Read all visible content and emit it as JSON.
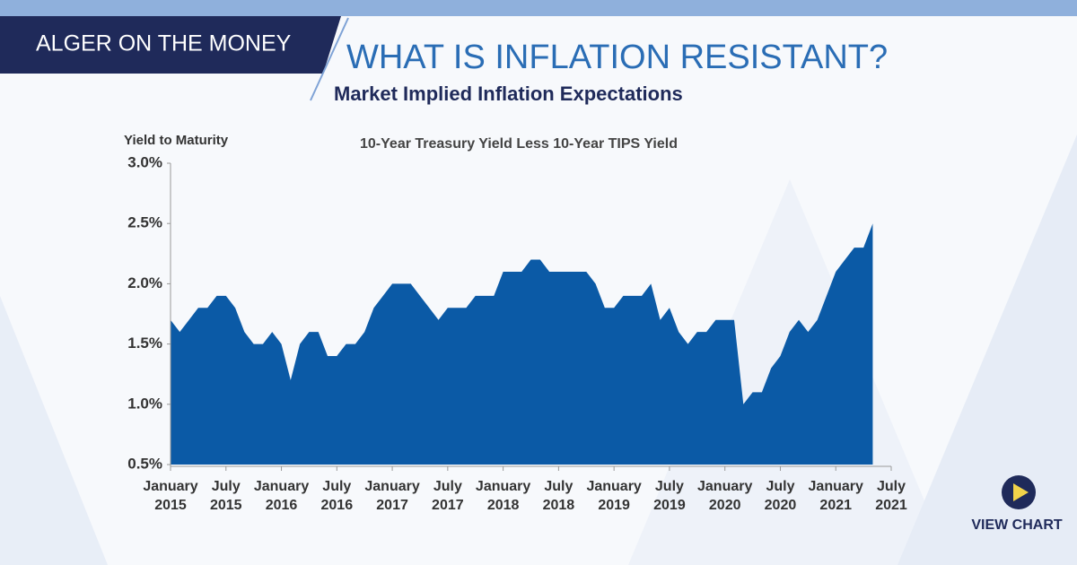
{
  "header": {
    "brand": "ALGER ON THE MONEY",
    "headline": "WHAT IS INFLATION RESISTANT?"
  },
  "button": {
    "label": "VIEW CHART"
  },
  "chart_data": {
    "type": "area",
    "title": "Market Implied Inflation Expectations",
    "subtitle": "10-Year Treasury Yield Less 10-Year TIPS Yield",
    "y_label": "Yield to Maturity",
    "color": "#0b5aa6",
    "x": [
      "2015-01",
      "2015-02",
      "2015-03",
      "2015-04",
      "2015-05",
      "2015-06",
      "2015-07",
      "2015-08",
      "2015-09",
      "2015-10",
      "2015-11",
      "2015-12",
      "2016-01",
      "2016-02",
      "2016-03",
      "2016-04",
      "2016-05",
      "2016-06",
      "2016-07",
      "2016-08",
      "2016-09",
      "2016-10",
      "2016-11",
      "2016-12",
      "2017-01",
      "2017-02",
      "2017-03",
      "2017-04",
      "2017-05",
      "2017-06",
      "2017-07",
      "2017-08",
      "2017-09",
      "2017-10",
      "2017-11",
      "2017-12",
      "2018-01",
      "2018-02",
      "2018-03",
      "2018-04",
      "2018-05",
      "2018-06",
      "2018-07",
      "2018-08",
      "2018-09",
      "2018-10",
      "2018-11",
      "2018-12",
      "2019-01",
      "2019-02",
      "2019-03",
      "2019-04",
      "2019-05",
      "2019-06",
      "2019-07",
      "2019-08",
      "2019-09",
      "2019-10",
      "2019-11",
      "2019-12",
      "2020-01",
      "2020-02",
      "2020-03",
      "2020-04",
      "2020-05",
      "2020-06",
      "2020-07",
      "2020-08",
      "2020-09",
      "2020-10",
      "2020-11",
      "2020-12",
      "2021-01",
      "2021-02",
      "2021-03",
      "2021-04",
      "2021-05"
    ],
    "values": [
      1.7,
      1.6,
      1.7,
      1.8,
      1.8,
      1.9,
      1.9,
      1.8,
      1.6,
      1.5,
      1.5,
      1.6,
      1.5,
      1.2,
      1.5,
      1.6,
      1.6,
      1.4,
      1.4,
      1.5,
      1.5,
      1.6,
      1.8,
      1.9,
      2.0,
      2.0,
      2.0,
      1.9,
      1.8,
      1.7,
      1.8,
      1.8,
      1.8,
      1.9,
      1.9,
      1.9,
      2.1,
      2.1,
      2.1,
      2.2,
      2.2,
      2.1,
      2.1,
      2.1,
      2.1,
      2.1,
      2.0,
      1.8,
      1.8,
      1.9,
      1.9,
      1.9,
      2.0,
      1.7,
      1.8,
      1.6,
      1.5,
      1.6,
      1.6,
      1.7,
      1.7,
      1.7,
      1.0,
      1.1,
      1.1,
      1.3,
      1.4,
      1.6,
      1.7,
      1.6,
      1.7,
      1.9,
      2.1,
      2.2,
      2.3,
      2.3,
      2.5
    ],
    "xlim": [
      "2015-01",
      "2021-07"
    ],
    "xticks": [
      {
        "value": "2015-01",
        "label": "January 2015"
      },
      {
        "value": "2015-07",
        "label": "July 2015"
      },
      {
        "value": "2016-01",
        "label": "January 2016"
      },
      {
        "value": "2016-07",
        "label": "July 2016"
      },
      {
        "value": "2017-01",
        "label": "January 2017"
      },
      {
        "value": "2017-07",
        "label": "July 2017"
      },
      {
        "value": "2018-01",
        "label": "January 2018"
      },
      {
        "value": "2018-07",
        "label": "July 2018"
      },
      {
        "value": "2019-01",
        "label": "January 2019"
      },
      {
        "value": "2019-07",
        "label": "July 2019"
      },
      {
        "value": "2020-01",
        "label": "January 2020"
      },
      {
        "value": "2020-07",
        "label": "July 2020"
      },
      {
        "value": "2021-01",
        "label": "January 2021"
      },
      {
        "value": "2021-07",
        "label": "July 2021"
      }
    ],
    "ylim": [
      0.5,
      3.0
    ],
    "yticks": [
      {
        "value": 0.5,
        "label": "0.5%"
      },
      {
        "value": 1.0,
        "label": "1.0%"
      },
      {
        "value": 1.5,
        "label": "1.5%"
      },
      {
        "value": 2.0,
        "label": "2.0%"
      },
      {
        "value": 2.5,
        "label": "2.5%"
      },
      {
        "value": 3.0,
        "label": "3.0%"
      }
    ]
  }
}
